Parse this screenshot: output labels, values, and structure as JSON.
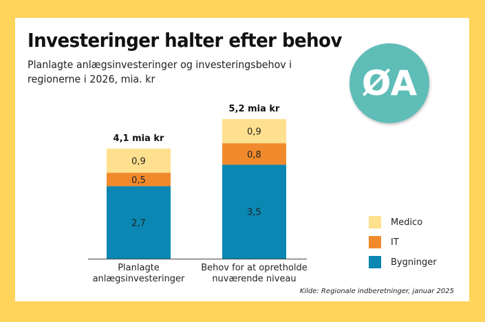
{
  "header": {
    "title": "Investeringer halter efter behov",
    "subtitle": "Planlagte anlægsinvesteringer og investeringsbehov i regionerne i 2026, mia. kr"
  },
  "badge": {
    "label": "ØA",
    "color": "#5FBDB8"
  },
  "source": "Kilde: Regionale indberetninger, januar 2025",
  "chart_data": {
    "type": "bar",
    "stacked": true,
    "categories": [
      [
        "Planlagte",
        "anlægsinvesteringer"
      ],
      [
        "Behov for at opretholde",
        "nuværende niveau"
      ]
    ],
    "series": [
      {
        "name": "Bygninger",
        "values": [
          2.7,
          3.5
        ],
        "labels": [
          "2,7",
          "3,5"
        ],
        "color": "#0A87B2"
      },
      {
        "name": "IT",
        "values": [
          0.5,
          0.8
        ],
        "labels": [
          "0,5",
          "0,8"
        ],
        "color": "#F18A2C"
      },
      {
        "name": "Medico",
        "values": [
          0.9,
          0.9
        ],
        "labels": [
          "0,9",
          "0,9"
        ],
        "color": "#FFE08E"
      }
    ],
    "totals": [
      "4,1 mia kr",
      "5,2 mia kr"
    ],
    "ylim": [
      0,
      5.2
    ],
    "grid": false,
    "legend_position": "right"
  }
}
